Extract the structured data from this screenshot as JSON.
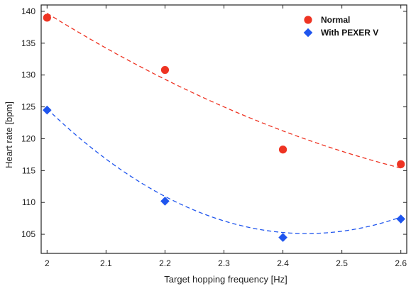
{
  "chart_data": {
    "type": "scatter",
    "title": "",
    "xlabel": "Target hopping frequency [Hz]",
    "ylabel": "Heart rate [bpm]",
    "xlim": [
      1.99,
      2.61
    ],
    "ylim": [
      102,
      141
    ],
    "xticks": [
      2.0,
      2.1,
      2.2,
      2.3,
      2.4,
      2.5,
      2.6
    ],
    "xtick_labels": [
      "2",
      "2.1",
      "2.2",
      "2.3",
      "2.4",
      "2.5",
      "2.6"
    ],
    "yticks": [
      105,
      110,
      115,
      120,
      125,
      130,
      135,
      140
    ],
    "ytick_labels": [
      "105",
      "110",
      "115",
      "120",
      "125",
      "130",
      "135",
      "140"
    ],
    "grid": false,
    "legend_position": "top-right",
    "series": [
      {
        "name": "Normal",
        "marker": "circle",
        "color": "#ee3322",
        "trend_color": "#ee3322",
        "x": [
          2.0,
          2.2,
          2.4,
          2.6
        ],
        "y": [
          139.0,
          130.8,
          118.3,
          116.0
        ],
        "trend": {
          "type": "quadratic",
          "x": [
            2.0,
            2.3,
            2.6
          ],
          "y": [
            139.7,
            125.0,
            115.4
          ]
        }
      },
      {
        "name": "With PEXER V",
        "marker": "diamond",
        "color": "#1f55ee",
        "trend_color": "#1f55ee",
        "x": [
          2.0,
          2.2,
          2.4,
          2.6
        ],
        "y": [
          124.5,
          110.2,
          104.5,
          107.4
        ],
        "trend": {
          "type": "quadratic",
          "x": [
            2.0,
            2.3,
            2.6
          ],
          "y": [
            124.7,
            107.1,
            107.7
          ]
        }
      }
    ]
  }
}
